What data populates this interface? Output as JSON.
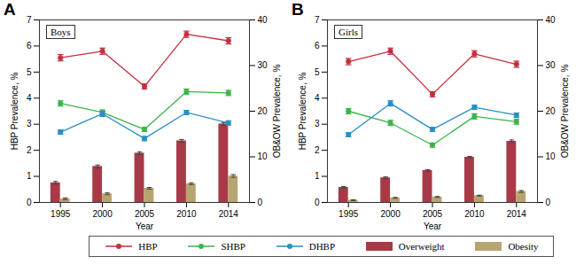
{
  "chart_data": [
    {
      "type": "line",
      "title": "Boys",
      "annotations": [
        "A"
      ],
      "x_label": "Year",
      "y_label": "HBP Prevalence, %",
      "y2_label": "OB&OW Prevalence, %",
      "categories": [
        "1995",
        "2000",
        "2005",
        "2010",
        "2014"
      ],
      "ylim": [
        0,
        7
      ],
      "yticks": [
        0,
        1,
        2,
        3,
        4,
        5,
        6,
        7
      ],
      "y2lim": [
        0,
        40
      ],
      "y2ticks": [
        0,
        10,
        20,
        30,
        40
      ],
      "legend": "bottom",
      "series": [
        {
          "name": "HBP",
          "type": "line",
          "color": "#c4303c",
          "marker": "circle",
          "axis": "y",
          "values": [
            5.55,
            5.8,
            4.45,
            6.45,
            6.2
          ],
          "errors": [
            0.12,
            0.12,
            0.1,
            0.12,
            0.12
          ]
        },
        {
          "name": "SHBP",
          "type": "line",
          "color": "#3cb44b",
          "marker": "circle",
          "axis": "y",
          "values": [
            3.8,
            3.45,
            2.8,
            4.25,
            4.2
          ],
          "errors": [
            0.1,
            0.1,
            0.08,
            0.1,
            0.1
          ]
        },
        {
          "name": "DHBP",
          "type": "line",
          "color": "#2a8fc7",
          "marker": "circle",
          "axis": "y",
          "values": [
            2.7,
            3.4,
            2.45,
            3.45,
            3.05
          ],
          "errors": [
            0.08,
            0.1,
            0.08,
            0.08,
            0.08
          ]
        },
        {
          "name": "Overweight",
          "type": "bar",
          "color": "#a83a48",
          "axis": "y2",
          "values": [
            4.3,
            7.9,
            10.8,
            13.5,
            17.2
          ],
          "errors": [
            0.3,
            0.3,
            0.3,
            0.3,
            0.3
          ]
        },
        {
          "name": "Obesity",
          "type": "bar",
          "color": "#b8a470",
          "axis": "y2",
          "values": [
            0.8,
            1.9,
            3.1,
            4.1,
            5.8
          ],
          "errors": [
            0.2,
            0.2,
            0.2,
            0.2,
            0.3
          ]
        }
      ]
    },
    {
      "type": "line",
      "title": "Girls",
      "annotations": [
        "B"
      ],
      "x_label": "Year",
      "y_label": "HBP Prevalence, %",
      "y2_label": "OB&OW Prevalence, %",
      "categories": [
        "1995",
        "2000",
        "2005",
        "2010",
        "2014"
      ],
      "ylim": [
        0,
        7
      ],
      "yticks": [
        0,
        1,
        2,
        3,
        4,
        5,
        6,
        7
      ],
      "y2lim": [
        0,
        40
      ],
      "y2ticks": [
        0,
        10,
        20,
        30,
        40
      ],
      "legend": "bottom",
      "series": [
        {
          "name": "HBP",
          "type": "line",
          "color": "#c4303c",
          "marker": "circle",
          "axis": "y",
          "values": [
            5.4,
            5.8,
            4.15,
            5.7,
            5.3
          ],
          "errors": [
            0.12,
            0.12,
            0.1,
            0.12,
            0.12
          ]
        },
        {
          "name": "SHBP",
          "type": "line",
          "color": "#3cb44b",
          "marker": "circle",
          "axis": "y",
          "values": [
            3.5,
            3.05,
            2.2,
            3.3,
            3.1
          ],
          "errors": [
            0.1,
            0.1,
            0.08,
            0.1,
            0.1
          ]
        },
        {
          "name": "DHBP",
          "type": "line",
          "color": "#2a8fc7",
          "marker": "circle",
          "axis": "y",
          "values": [
            2.6,
            3.8,
            2.8,
            3.65,
            3.35
          ],
          "errors": [
            0.08,
            0.1,
            0.08,
            0.08,
            0.08
          ]
        },
        {
          "name": "Overweight",
          "type": "bar",
          "color": "#a83a48",
          "axis": "y2",
          "values": [
            3.3,
            5.4,
            7.0,
            9.9,
            13.4
          ],
          "errors": [
            0.2,
            0.2,
            0.2,
            0.2,
            0.3
          ]
        },
        {
          "name": "Obesity",
          "type": "bar",
          "color": "#b8a470",
          "axis": "y2",
          "values": [
            0.5,
            1.0,
            1.2,
            1.5,
            2.4
          ],
          "errors": [
            0.1,
            0.1,
            0.1,
            0.1,
            0.2
          ]
        }
      ]
    }
  ]
}
